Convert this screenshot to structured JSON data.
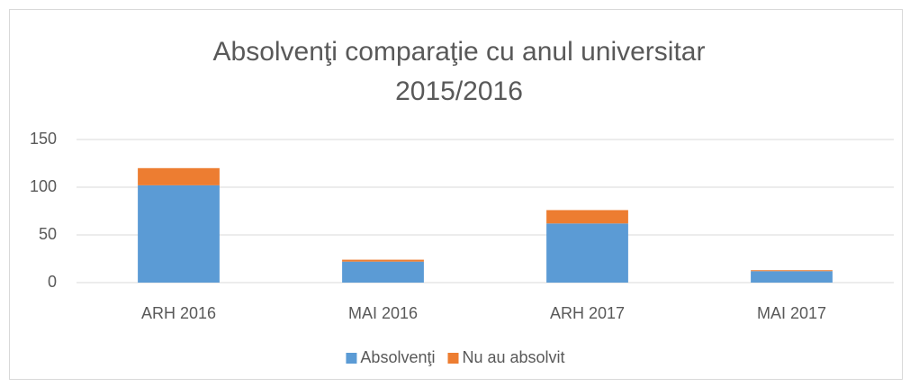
{
  "chart_data": {
    "type": "bar",
    "stacked": true,
    "title": "Absolvenţi comparaţie cu anul universitar 2015/2016",
    "categories": [
      "ARH 2016",
      "MAI 2016",
      "ARH 2017",
      "MAI 2017"
    ],
    "series": [
      {
        "name": "Absolvenţi",
        "color": "#5b9bd5",
        "values": [
          102,
          22,
          62,
          12
        ]
      },
      {
        "name": "Nu au absolvit",
        "color": "#ed7d31",
        "values": [
          18,
          2,
          14,
          1
        ]
      }
    ],
    "ylim": [
      0,
      150
    ],
    "yticks": [
      0,
      50,
      100,
      150
    ],
    "grid": true,
    "legend": "bottom"
  }
}
